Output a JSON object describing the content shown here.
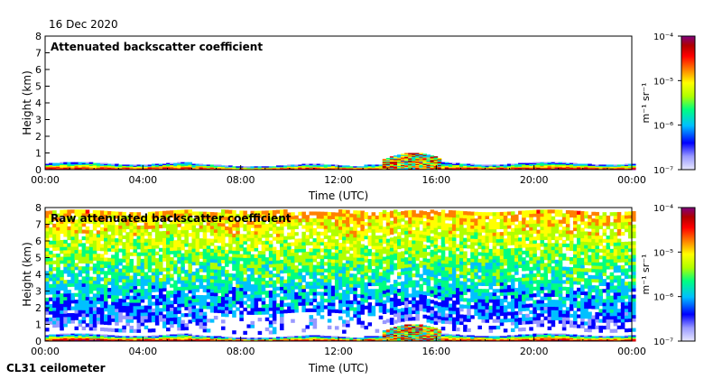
{
  "date_label": "16 Dec 2020",
  "footer_label": "CL31 ceilometer",
  "colors": {
    "scale": [
      "#e8e8ff",
      "#9999ff",
      "#0000ff",
      "#00c0ff",
      "#00ff80",
      "#b0ff00",
      "#ffff00",
      "#ff8000",
      "#ff0000",
      "#b00000",
      "#800080"
    ],
    "background": "#ffffff"
  },
  "chart_data": [
    {
      "type": "heatmap",
      "title": "Attenuated backscatter coefficient",
      "xlabel": "Time (UTC)",
      "ylabel": "Height (km)",
      "x_ticks": [
        "00:00",
        "04:00",
        "08:00",
        "12:00",
        "16:00",
        "20:00",
        "00:00"
      ],
      "y_ticks": [
        "0",
        "1",
        "2",
        "3",
        "4",
        "5",
        "6",
        "7",
        "8"
      ],
      "ylim": [
        0,
        8
      ],
      "xlim_hours": [
        0,
        24
      ],
      "colorbar": {
        "unit_text": "m⁻¹ sr⁻¹",
        "tick_labels": [
          "10⁻⁷",
          "10⁻⁶",
          "10⁻⁵",
          "10⁻⁴"
        ],
        "log_range": [
          -7,
          -4
        ]
      },
      "features": {
        "boundary_layer_top_km": 0.35,
        "fog_event_hours": [
          13.8,
          16.2
        ],
        "fog_event_top_km": 1.0,
        "noise": false
      }
    },
    {
      "type": "heatmap",
      "title": "Raw attenuated backscatter coefficient",
      "xlabel": "Time (UTC)",
      "ylabel": "Height (km)",
      "x_ticks": [
        "00:00",
        "04:00",
        "08:00",
        "12:00",
        "16:00",
        "20:00",
        "00:00"
      ],
      "y_ticks": [
        "0",
        "1",
        "2",
        "3",
        "4",
        "5",
        "6",
        "7",
        "8"
      ],
      "ylim": [
        0,
        8
      ],
      "xlim_hours": [
        0,
        24
      ],
      "colorbar": {
        "unit_text": "m⁻¹ sr⁻¹",
        "tick_labels": [
          "10⁻⁷",
          "10⁻⁶",
          "10⁻⁵",
          "10⁻⁴"
        ],
        "log_range": [
          -7,
          -4
        ]
      },
      "features": {
        "boundary_layer_top_km": 0.35,
        "fog_event_hours": [
          13.8,
          16.2
        ],
        "fog_event_top_km": 1.0,
        "noise": true,
        "noise_top_km": 7.7
      }
    }
  ]
}
